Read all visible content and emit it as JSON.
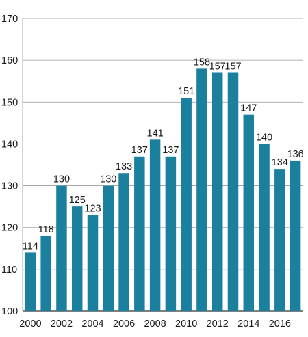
{
  "chart_data": {
    "type": "bar",
    "title": "",
    "xlabel": "",
    "ylabel": "",
    "categories": [
      "2000",
      "2001",
      "2002",
      "2003",
      "2004",
      "2005",
      "2006",
      "2007",
      "2008",
      "2009",
      "2010",
      "2011",
      "2012",
      "2013",
      "2014",
      "2015",
      "2016",
      "2017"
    ],
    "values": [
      114,
      118,
      130,
      125,
      123,
      130,
      133,
      137,
      141,
      137,
      151,
      158,
      157,
      157,
      147,
      140,
      134,
      136
    ],
    "data_labels": [
      "114",
      "118",
      "130",
      "125",
      "123",
      "130",
      "133",
      "137",
      "141",
      "137",
      "151",
      "158",
      "157",
      "157",
      "147",
      "140",
      "134",
      "136"
    ],
    "x_tick_labels": [
      "2000",
      "",
      "2002",
      "",
      "2004",
      "",
      "2006",
      "",
      "2008",
      "",
      "2010",
      "",
      "2012",
      "",
      "2014",
      "",
      "2016",
      ""
    ],
    "y_ticks": [
      100,
      110,
      120,
      130,
      140,
      150,
      160,
      170
    ],
    "y_tick_labels": [
      "100",
      "110",
      "120",
      "130",
      "140",
      "150",
      "160",
      "170"
    ],
    "ylim": [
      100,
      170
    ],
    "grid": true,
    "legend": "none",
    "colors": {
      "bar": "#1b7f9e",
      "grid": "#9a9a9a",
      "axis": "#333333"
    }
  }
}
